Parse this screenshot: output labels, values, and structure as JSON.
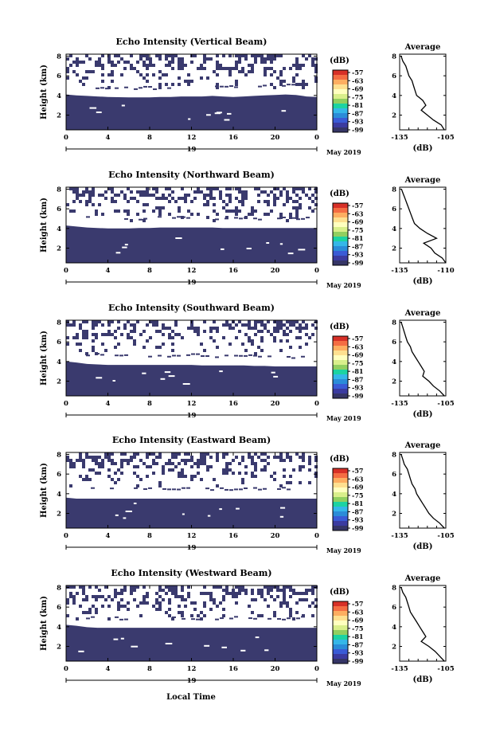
{
  "figure": {
    "xlabel": "Local Time",
    "date_label": "May 2019",
    "day_label": "19",
    "ylabel": "Height (km)",
    "colorbar_unit": "(dB)",
    "colorbar_ticks": [
      "-57",
      "-63",
      "-69",
      "-75",
      "-81",
      "-87",
      "-93",
      "-99"
    ],
    "colorbar_colors": [
      "#d73027",
      "#f46d43",
      "#fdae61",
      "#fee090",
      "#ffffbf",
      "#d9ef8b",
      "#91cf60",
      "#1cd3a2",
      "#35b7e8",
      "#2b8cd8",
      "#3a5bd6",
      "#3b3ba0",
      "#353566"
    ],
    "avg_title": "Average",
    "avg_xlabel": "(dB)",
    "panel_fill_color": "#3a3a6e"
  },
  "chart_data": [
    {
      "type": "heatmap",
      "title": "Echo Intensity (Vertical Beam)",
      "x_ticks": [
        "0",
        "4",
        "8",
        "12",
        "16",
        "20",
        "0"
      ],
      "xlim": [
        0,
        24
      ],
      "y_ticks": [
        "2",
        "4",
        "6",
        "8"
      ],
      "ylim": [
        0.5,
        8.2
      ],
      "boundary_km": [
        4.1,
        4.0,
        3.95,
        3.9,
        3.85,
        3.82,
        3.8,
        3.8,
        3.8,
        3.85,
        3.85,
        3.9,
        3.9,
        3.9,
        3.95,
        3.9,
        3.85,
        3.9,
        3.95,
        4.0,
        4.05,
        4.1,
        4.05,
        3.9,
        3.85
      ],
      "average_profile": {
        "xlim": [
          -135,
          -105
        ],
        "x_ticks": [
          "-135",
          "-105"
        ],
        "y_ticks": [
          "2",
          "4",
          "6",
          "8"
        ],
        "ylim": [
          0.5,
          8.2
        ],
        "height": [
          8.0,
          7.5,
          7.0,
          6.5,
          6.0,
          5.5,
          5.0,
          4.5,
          4.0,
          3.5,
          3.0,
          2.5,
          2.0,
          1.5,
          1.0,
          0.5
        ],
        "value": [
          -134,
          -133,
          -131,
          -130,
          -129,
          -127,
          -126,
          -125,
          -124,
          -120,
          -118,
          -121,
          -117,
          -113,
          -108,
          -106
        ]
      }
    },
    {
      "type": "heatmap",
      "title": "Echo Intensity (Northward Beam)",
      "x_ticks": [
        "0",
        "4",
        "8",
        "12",
        "16",
        "20",
        "0"
      ],
      "xlim": [
        0,
        24
      ],
      "y_ticks": [
        "2",
        "4",
        "6",
        "8"
      ],
      "ylim": [
        0.5,
        8.2
      ],
      "boundary_km": [
        4.3,
        4.2,
        4.1,
        4.05,
        4.0,
        4.0,
        4.0,
        4.05,
        4.05,
        4.1,
        4.1,
        4.1,
        4.1,
        4.1,
        4.1,
        4.05,
        4.05,
        4.05,
        4.05,
        4.05,
        4.05,
        4.05,
        4.05,
        4.05,
        4.05
      ],
      "average_profile": {
        "xlim": [
          -135,
          -110
        ],
        "x_ticks": [
          "-135",
          "-110"
        ],
        "y_ticks": [
          "2",
          "4",
          "6",
          "8"
        ],
        "ylim": [
          0.5,
          8.2
        ],
        "height": [
          8.0,
          7.5,
          7.0,
          6.5,
          6.0,
          5.5,
          5.0,
          4.5,
          4.0,
          3.5,
          3.0,
          2.5,
          2.0,
          1.5,
          1.0,
          0.5
        ],
        "value": [
          -134,
          -133,
          -132,
          -131,
          -130,
          -129,
          -128,
          -127,
          -124,
          -120,
          -115,
          -122,
          -118,
          -116,
          -112,
          -110
        ]
      }
    },
    {
      "type": "heatmap",
      "title": "Echo Intensity (Southward Beam)",
      "x_ticks": [
        "0",
        "4",
        "8",
        "12",
        "16",
        "20",
        "0"
      ],
      "xlim": [
        0,
        24
      ],
      "y_ticks": [
        "2",
        "4",
        "6",
        "8"
      ],
      "ylim": [
        0.5,
        8.2
      ],
      "boundary_km": [
        4.0,
        3.9,
        3.75,
        3.7,
        3.65,
        3.65,
        3.65,
        3.65,
        3.65,
        3.65,
        3.65,
        3.65,
        3.65,
        3.6,
        3.6,
        3.6,
        3.6,
        3.6,
        3.55,
        3.55,
        3.5,
        3.5,
        3.5,
        3.5,
        3.5
      ],
      "average_profile": {
        "xlim": [
          -135,
          -105
        ],
        "x_ticks": [
          "-135",
          "-105"
        ],
        "y_ticks": [
          "2",
          "4",
          "6",
          "8"
        ],
        "ylim": [
          0.5,
          8.2
        ],
        "height": [
          8.0,
          7.5,
          7.0,
          6.5,
          6.0,
          5.5,
          5.0,
          4.5,
          4.0,
          3.5,
          3.0,
          2.5,
          2.0,
          1.5,
          1.0,
          0.5
        ],
        "value": [
          -134,
          -133,
          -132,
          -131,
          -130,
          -128,
          -127,
          -125,
          -123,
          -121,
          -119,
          -120,
          -116,
          -113,
          -109,
          -106
        ]
      }
    },
    {
      "type": "heatmap",
      "title": "Echo Intensity (Eastward Beam)",
      "x_ticks": [
        "0",
        "4",
        "8",
        "12",
        "16",
        "20",
        "0"
      ],
      "xlim": [
        0,
        24
      ],
      "y_ticks": [
        "2",
        "4",
        "6",
        "8"
      ],
      "ylim": [
        0.5,
        8.2
      ],
      "boundary_km": [
        3.6,
        3.5,
        3.5,
        3.5,
        3.5,
        3.5,
        3.5,
        3.5,
        3.5,
        3.5,
        3.5,
        3.5,
        3.5,
        3.5,
        3.5,
        3.5,
        3.5,
        3.5,
        3.5,
        3.5,
        3.5,
        3.5,
        3.5,
        3.5,
        3.5
      ],
      "average_profile": {
        "xlim": [
          -135,
          -105
        ],
        "x_ticks": [
          "-135",
          "-105"
        ],
        "y_ticks": [
          "2",
          "4",
          "6",
          "8"
        ],
        "ylim": [
          0.5,
          8.2
        ],
        "height": [
          8.0,
          7.5,
          7.0,
          6.5,
          6.0,
          5.5,
          5.0,
          4.5,
          4.0,
          3.5,
          3.0,
          2.5,
          2.0,
          1.5,
          1.0,
          0.5
        ],
        "value": [
          -134,
          -133,
          -132,
          -130,
          -129,
          -128,
          -127,
          -125,
          -124,
          -122,
          -120,
          -118,
          -116,
          -113,
          -109,
          -106
        ]
      }
    },
    {
      "type": "heatmap",
      "title": "Echo Intensity (Westward Beam)",
      "x_ticks": [
        "0",
        "4",
        "8",
        "12",
        "16",
        "20",
        "0"
      ],
      "xlim": [
        0,
        24
      ],
      "y_ticks": [
        "2",
        "4",
        "6",
        "8"
      ],
      "ylim": [
        0.5,
        8.2
      ],
      "boundary_km": [
        4.2,
        4.1,
        3.95,
        3.9,
        3.9,
        3.9,
        3.9,
        3.9,
        3.9,
        3.9,
        3.9,
        3.9,
        3.9,
        3.9,
        3.9,
        3.9,
        3.9,
        3.9,
        3.9,
        3.9,
        3.9,
        3.9,
        3.9,
        3.9,
        3.9
      ],
      "average_profile": {
        "xlim": [
          -135,
          -105
        ],
        "x_ticks": [
          "-135",
          "-105"
        ],
        "y_ticks": [
          "2",
          "4",
          "6",
          "8"
        ],
        "ylim": [
          0.5,
          8.2
        ],
        "height": [
          8.0,
          7.5,
          7.0,
          6.5,
          6.0,
          5.5,
          5.0,
          4.5,
          4.0,
          3.5,
          3.0,
          2.5,
          2.0,
          1.5,
          1.0,
          0.5
        ],
        "value": [
          -134,
          -133,
          -131,
          -130,
          -129,
          -128,
          -126,
          -124,
          -122,
          -120,
          -118,
          -121,
          -116,
          -112,
          -109,
          -106
        ]
      }
    }
  ]
}
